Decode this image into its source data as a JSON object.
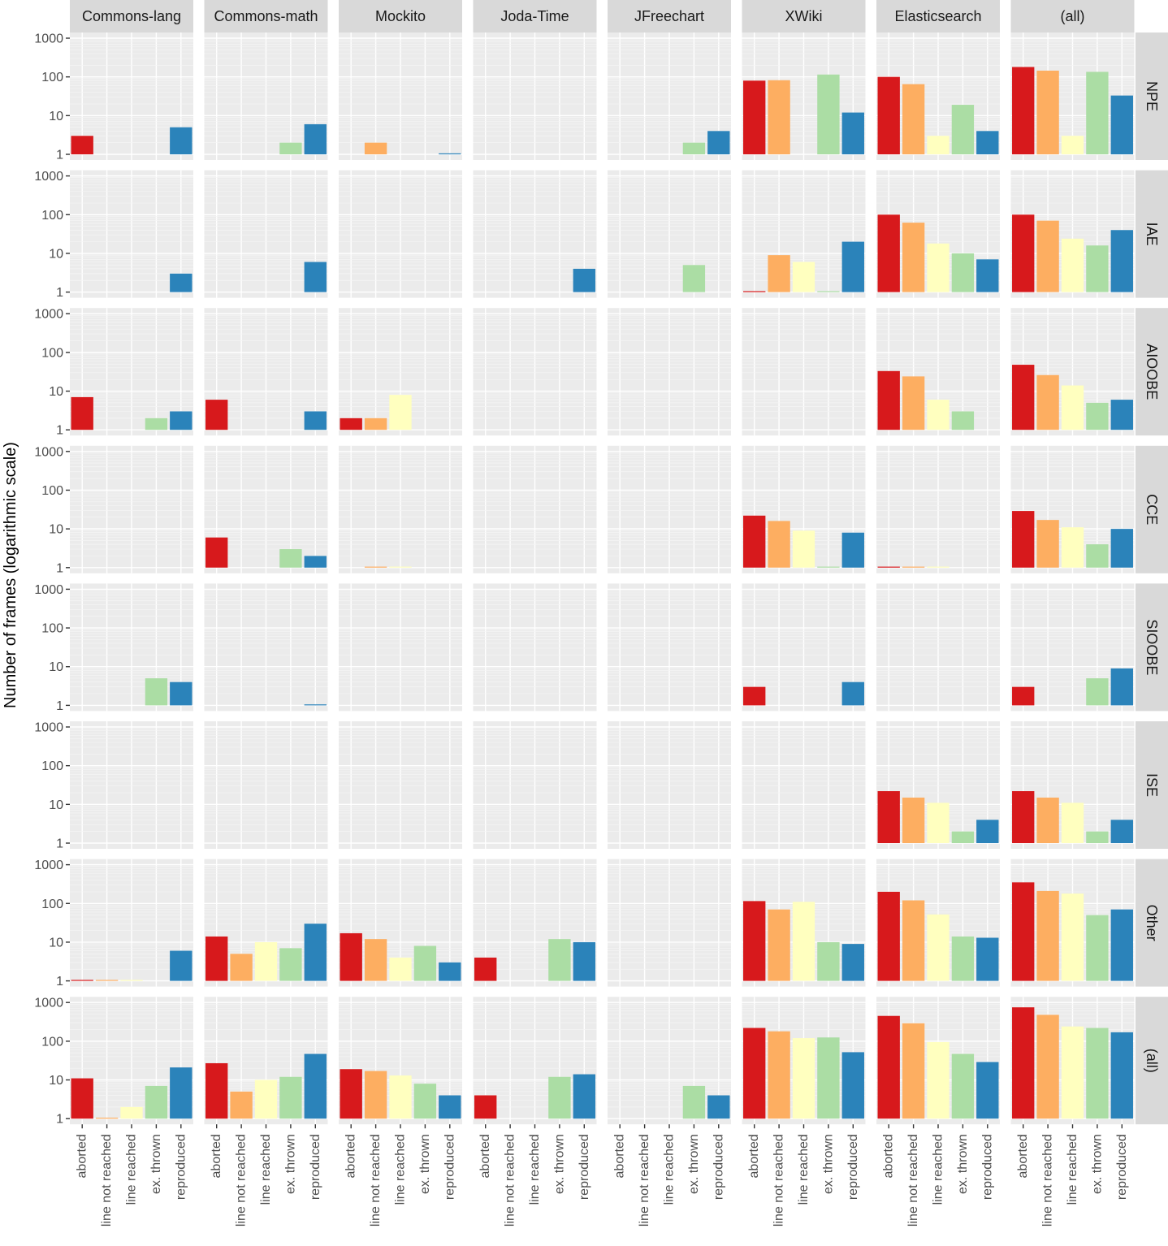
{
  "chart_data": {
    "type": "bar",
    "title": "",
    "ylabel": "Number of frames (logarithmic scale)",
    "xlabel": "",
    "y_scale": "log10",
    "ylim": [
      1,
      1000
    ],
    "y_ticks": [
      1,
      10,
      100,
      1000
    ],
    "y_tick_labels": [
      "1",
      "10",
      "100",
      "1000"
    ],
    "categories": [
      "aborted",
      "line not reached",
      "line reached",
      "ex. thrown",
      "reproduced"
    ],
    "colors": {
      "aborted": "#d7191c",
      "line not reached": "#fdae61",
      "line reached": "#ffffbf",
      "ex. thrown": "#abdda4",
      "reproduced": "#2b83ba"
    },
    "grid": "on",
    "column_facets": [
      "Commons-lang",
      "Commons-math",
      "Mockito",
      "Joda-Time",
      "JFreechart",
      "XWiki",
      "Elasticsearch",
      "(all)"
    ],
    "row_facets": [
      "NPE",
      "IAE",
      "AIOOBE",
      "CCE",
      "SIOOBE",
      "ISE",
      "Other",
      "(all)"
    ],
    "values": [
      [
        [
          3,
          null,
          null,
          null,
          5
        ],
        [
          null,
          null,
          null,
          2,
          6
        ],
        [
          null,
          2,
          null,
          null,
          1
        ],
        [
          null,
          null,
          null,
          null,
          null
        ],
        [
          null,
          null,
          null,
          2,
          4
        ],
        [
          80,
          82,
          null,
          115,
          12
        ],
        [
          100,
          65,
          3,
          19,
          4
        ],
        [
          180,
          145,
          3,
          135,
          33
        ]
      ],
      [
        [
          null,
          null,
          null,
          null,
          3
        ],
        [
          null,
          null,
          null,
          null,
          6
        ],
        [
          null,
          null,
          null,
          null,
          null
        ],
        [
          null,
          null,
          null,
          null,
          4
        ],
        [
          null,
          null,
          null,
          5,
          null
        ],
        [
          1,
          9,
          6,
          1,
          20
        ],
        [
          100,
          62,
          18,
          10,
          7
        ],
        [
          100,
          70,
          24,
          16,
          40
        ]
      ],
      [
        [
          7,
          null,
          null,
          2,
          3
        ],
        [
          6,
          null,
          null,
          null,
          3
        ],
        [
          2,
          2,
          8,
          null,
          null
        ],
        [
          null,
          null,
          null,
          null,
          null
        ],
        [
          null,
          null,
          null,
          null,
          null
        ],
        [
          null,
          null,
          null,
          null,
          null
        ],
        [
          33,
          24,
          6,
          3,
          null
        ],
        [
          48,
          26,
          14,
          5,
          6
        ]
      ],
      [
        [
          null,
          null,
          null,
          null,
          null
        ],
        [
          6,
          null,
          null,
          3,
          2
        ],
        [
          null,
          1,
          1,
          null,
          null
        ],
        [
          null,
          null,
          null,
          null,
          null
        ],
        [
          null,
          null,
          null,
          null,
          null
        ],
        [
          22,
          16,
          9,
          1,
          8
        ],
        [
          1,
          1,
          1,
          null,
          null
        ],
        [
          29,
          17,
          11,
          4,
          10
        ]
      ],
      [
        [
          null,
          null,
          null,
          5,
          4
        ],
        [
          null,
          null,
          null,
          null,
          1
        ],
        [
          null,
          null,
          null,
          null,
          null
        ],
        [
          null,
          null,
          null,
          null,
          null
        ],
        [
          null,
          null,
          null,
          null,
          null
        ],
        [
          3,
          null,
          null,
          null,
          4
        ],
        [
          null,
          null,
          null,
          null,
          null
        ],
        [
          3,
          null,
          null,
          5,
          9
        ]
      ],
      [
        [
          null,
          null,
          null,
          null,
          null
        ],
        [
          null,
          null,
          null,
          null,
          null
        ],
        [
          null,
          null,
          null,
          null,
          null
        ],
        [
          null,
          null,
          null,
          null,
          null
        ],
        [
          null,
          null,
          null,
          null,
          null
        ],
        [
          null,
          null,
          null,
          null,
          null
        ],
        [
          22,
          15,
          11,
          2,
          4
        ],
        [
          22,
          15,
          11,
          2,
          4
        ]
      ],
      [
        [
          1,
          1,
          1,
          null,
          6
        ],
        [
          14,
          5,
          10,
          7,
          30
        ],
        [
          17,
          12,
          4,
          8,
          3
        ],
        [
          4,
          null,
          null,
          12,
          10
        ],
        [
          null,
          null,
          null,
          null,
          null
        ],
        [
          115,
          70,
          110,
          10,
          9
        ],
        [
          200,
          120,
          52,
          14,
          13
        ],
        [
          350,
          210,
          180,
          50,
          70
        ]
      ],
      [
        [
          11,
          1,
          2,
          7,
          21
        ],
        [
          27,
          5,
          10,
          12,
          47
        ],
        [
          19,
          17,
          13,
          8,
          4
        ],
        [
          4,
          null,
          null,
          12,
          14
        ],
        [
          null,
          null,
          null,
          7,
          4
        ],
        [
          220,
          180,
          120,
          125,
          52
        ],
        [
          450,
          290,
          95,
          47,
          29
        ],
        [
          750,
          480,
          240,
          220,
          170
        ]
      ]
    ]
  }
}
